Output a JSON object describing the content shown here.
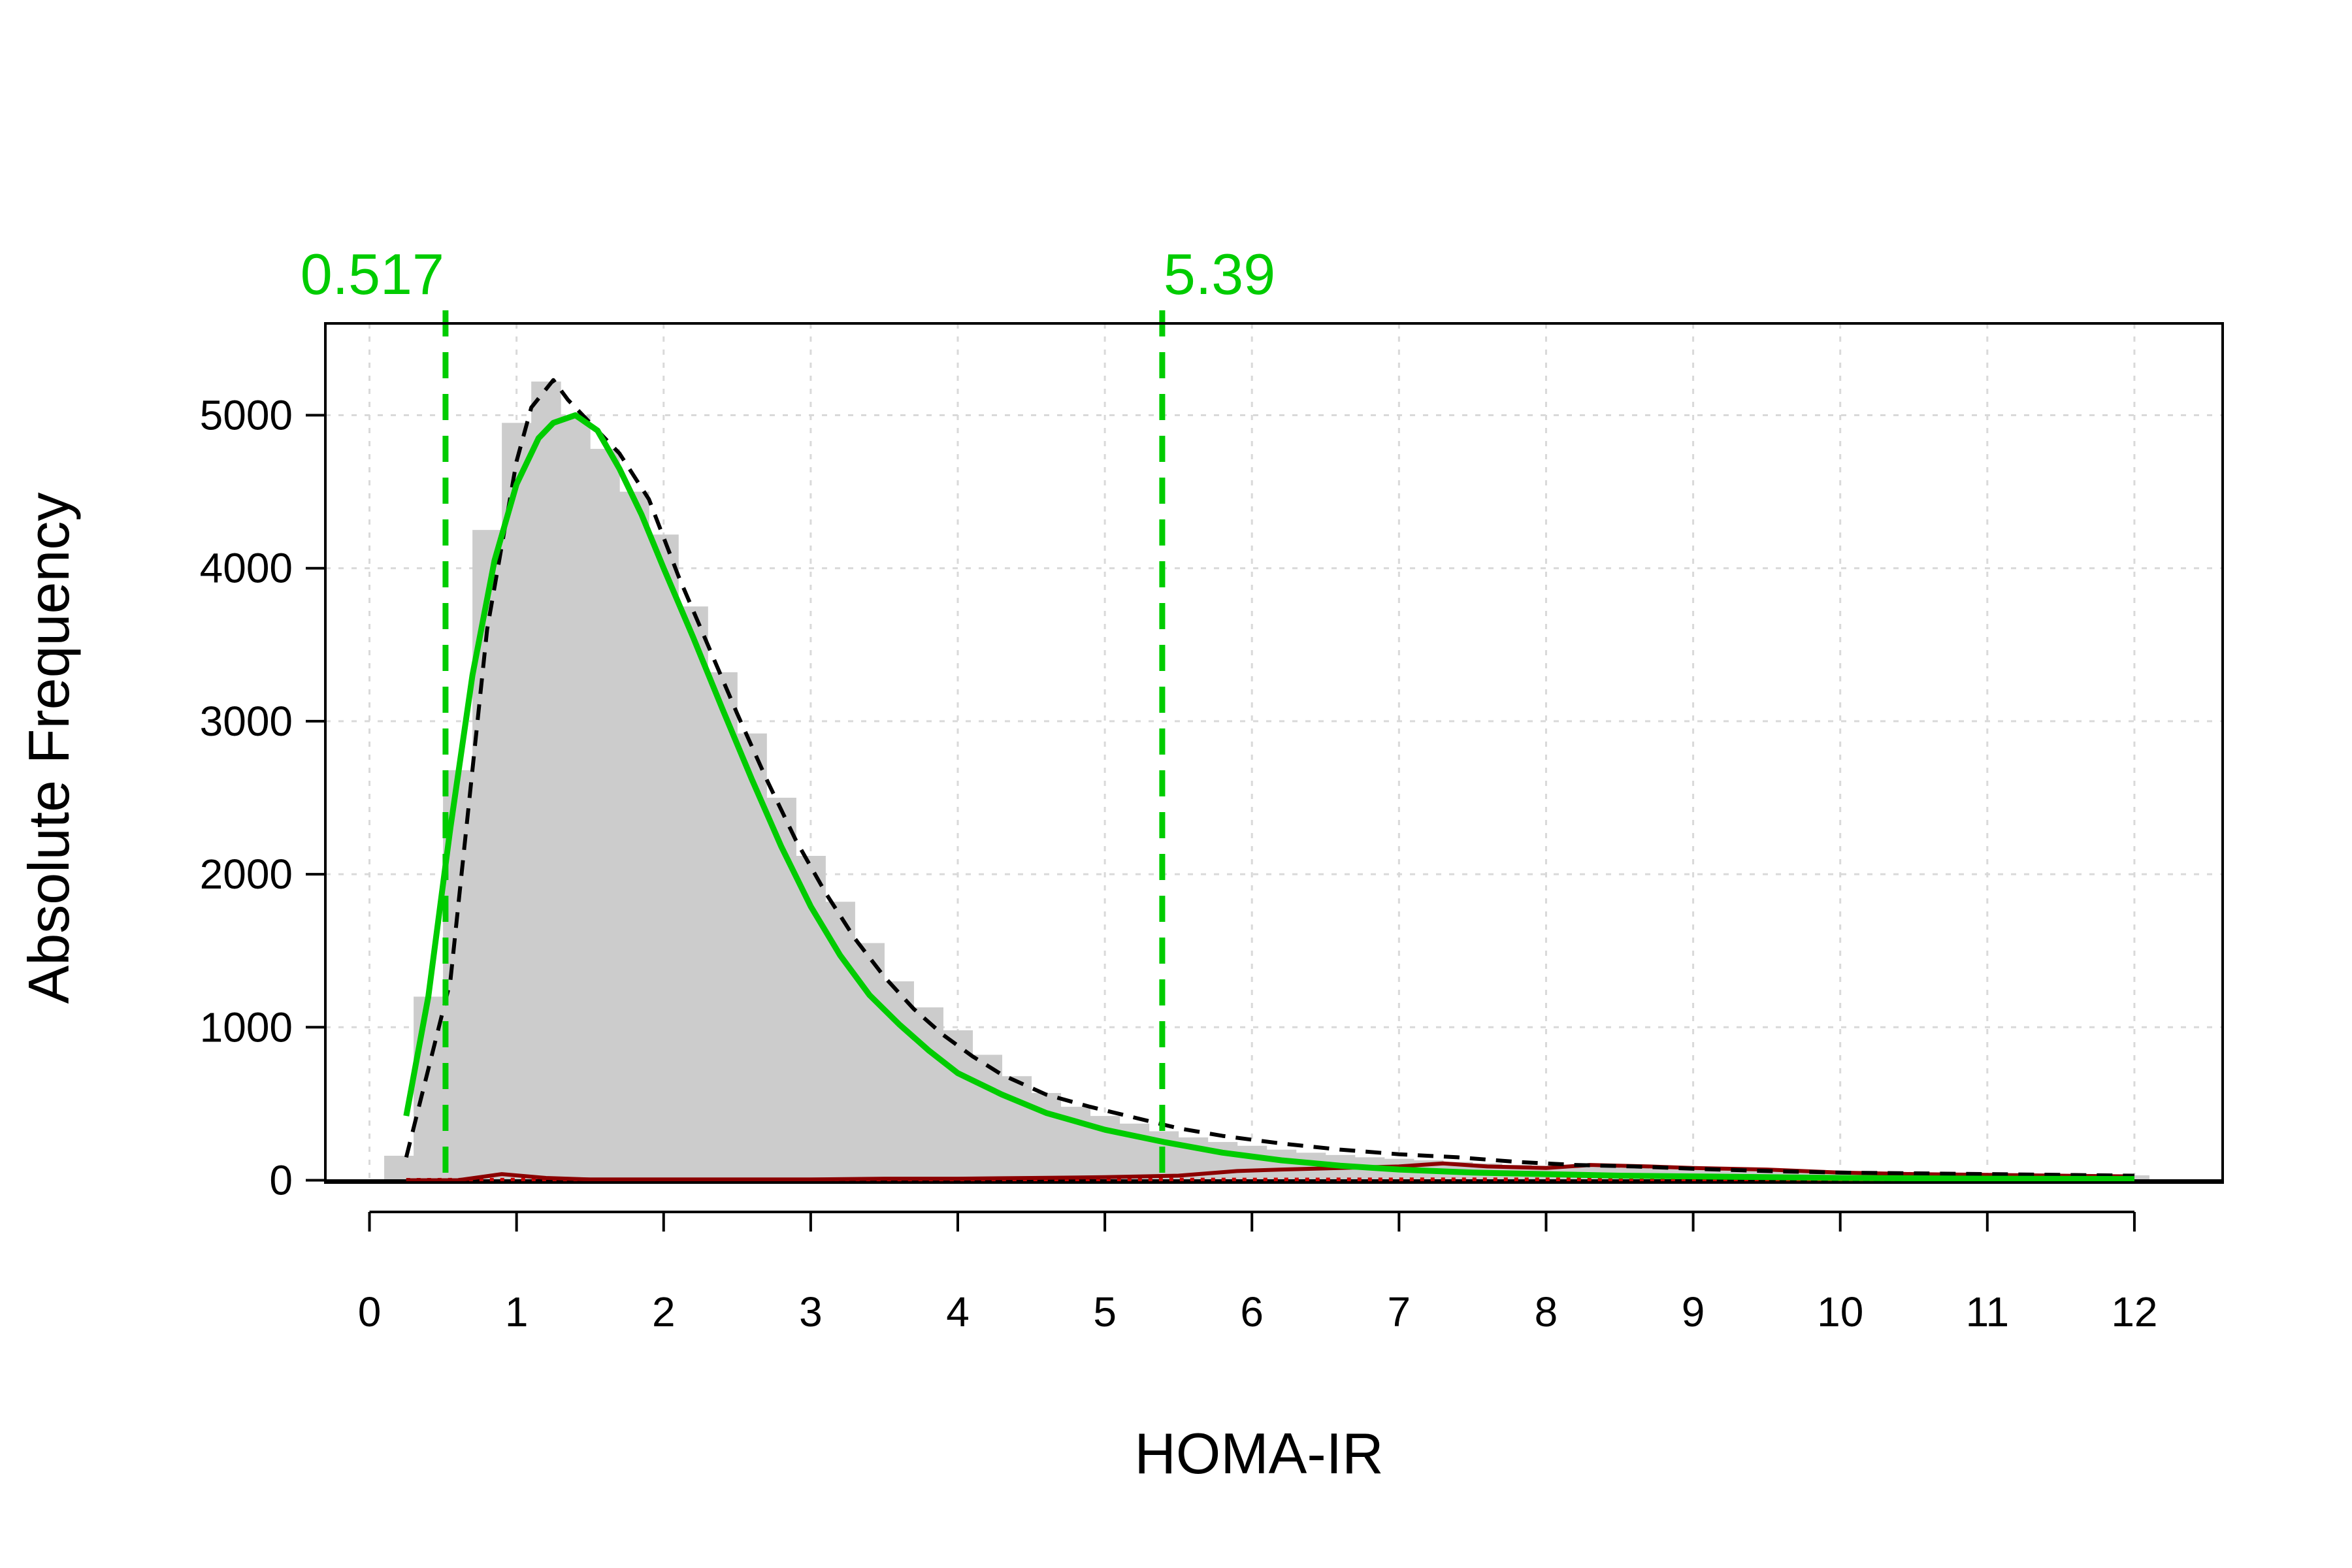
{
  "chart_data": {
    "type": "bar",
    "title": "",
    "xlabel": "HOMA-IR",
    "ylabel": "Absolute Frequency",
    "xlim": [
      -0.3,
      12.6
    ],
    "ylim": [
      -15,
      5600
    ],
    "x_ticks": [
      "0",
      "1",
      "2",
      "3",
      "4",
      "5",
      "6",
      "7",
      "8",
      "9",
      "10",
      "11",
      "12"
    ],
    "y_ticks": [
      "0",
      "1000",
      "2000",
      "3000",
      "4000",
      "5000"
    ],
    "grid": true,
    "histogram": {
      "name": "HOMA-IR",
      "color": "#cccccc",
      "bin_width": 0.2,
      "bin_starts": [
        0.1,
        0.3,
        0.5,
        0.7,
        0.9,
        1.1,
        1.3,
        1.5,
        1.7,
        1.9,
        2.1,
        2.3,
        2.5,
        2.7,
        2.9,
        3.1,
        3.3,
        3.5,
        3.7,
        3.9,
        4.1,
        4.3,
        4.5,
        4.7,
        4.9,
        5.1,
        5.3,
        5.5,
        5.7,
        5.9,
        6.1,
        6.3,
        6.5,
        6.7,
        6.9,
        7.1,
        7.3,
        7.5,
        7.7,
        7.9,
        8.1,
        8.3,
        8.5,
        8.7,
        8.9,
        9.1,
        9.3,
        9.5,
        9.7,
        9.9,
        10.1,
        10.3,
        10.5,
        10.7,
        10.9,
        11.1,
        11.3,
        11.5,
        11.7,
        11.9
      ],
      "values": [
        160,
        1200,
        2680,
        4250,
        4950,
        5220,
        5000,
        4780,
        4500,
        4220,
        3750,
        3320,
        2920,
        2500,
        2120,
        1820,
        1550,
        1300,
        1130,
        980,
        820,
        680,
        570,
        480,
        420,
        370,
        320,
        280,
        250,
        225,
        200,
        180,
        165,
        150,
        140,
        130,
        120,
        110,
        100,
        95,
        90,
        85,
        80,
        75,
        70,
        65,
        60,
        58,
        55,
        52,
        50,
        48,
        46,
        44,
        42,
        40,
        38,
        36,
        34,
        32
      ]
    },
    "series": [
      {
        "color": "#000000",
        "style": "dashed",
        "x": [
          0.25,
          0.55,
          0.8,
          1.0,
          1.1,
          1.25,
          1.35,
          1.5,
          1.7,
          1.9,
          2.1,
          2.3,
          2.5,
          2.7,
          2.9,
          3.1,
          3.3,
          3.5,
          3.7,
          3.9,
          4.1,
          4.3,
          4.6,
          4.9,
          5.2,
          5.5,
          5.8,
          6.2,
          6.6,
          7.0,
          7.4,
          7.8,
          8.2,
          8.6,
          9.0,
          9.5,
          10.0,
          10.5,
          11.0,
          11.5,
          12.0
        ],
        "values": [
          150,
          1300,
          3600,
          4700,
          5050,
          5230,
          5100,
          4950,
          4750,
          4450,
          3950,
          3500,
          3050,
          2620,
          2220,
          1880,
          1580,
          1330,
          1120,
          950,
          810,
          690,
          560,
          480,
          410,
          340,
          290,
          240,
          200,
          170,
          150,
          120,
          100,
          90,
          75,
          60,
          50,
          45,
          40,
          35,
          30
        ]
      },
      {
        "color": "#00cc00",
        "style": "solid",
        "x": [
          0.25,
          0.4,
          0.55,
          0.7,
          0.85,
          1.0,
          1.15,
          1.25,
          1.4,
          1.55,
          1.7,
          1.85,
          2.0,
          2.2,
          2.4,
          2.6,
          2.8,
          3.0,
          3.2,
          3.4,
          3.6,
          3.8,
          4.0,
          4.3,
          4.6,
          5.0,
          5.4,
          5.8,
          6.2,
          6.6,
          7.0,
          7.5,
          8.0,
          8.5,
          9.0,
          9.5,
          10.0,
          11.0,
          12.0
        ],
        "values": [
          420,
          1200,
          2300,
          3300,
          4050,
          4550,
          4850,
          4950,
          5000,
          4900,
          4650,
          4350,
          4000,
          3550,
          3080,
          2620,
          2180,
          1790,
          1470,
          1210,
          1020,
          850,
          700,
          560,
          440,
          330,
          250,
          180,
          130,
          95,
          70,
          50,
          40,
          30,
          25,
          20,
          15,
          10,
          8
        ]
      },
      {
        "color": "#8b0000",
        "style": "solid",
        "x": [
          0.25,
          0.6,
          0.9,
          1.2,
          1.5,
          2.0,
          2.5,
          3.0,
          3.5,
          4.0,
          4.5,
          5.0,
          5.5,
          5.9,
          6.2,
          6.6,
          7.0,
          7.3,
          7.6,
          8.0,
          8.3,
          8.7,
          9.0,
          9.5,
          10.0,
          10.5,
          11.0,
          11.5,
          12.0
        ],
        "values": [
          0,
          0,
          40,
          15,
          5,
          5,
          5,
          5,
          10,
          10,
          15,
          20,
          30,
          60,
          70,
          80,
          90,
          110,
          90,
          80,
          100,
          90,
          80,
          70,
          50,
          40,
          35,
          30,
          25
        ]
      },
      {
        "color": "#cc0000",
        "style": "dotted",
        "x": [
          0.25,
          1.0,
          2.0,
          3.0,
          4.0,
          5.0,
          6.0,
          7.0,
          8.0,
          9.0,
          10.0,
          11.0,
          12.0
        ],
        "values": [
          2,
          3,
          3,
          3,
          3,
          4,
          4,
          5,
          5,
          5,
          5,
          5,
          5
        ]
      }
    ],
    "reference_lines": [
      {
        "x": 0.517,
        "label": "0.517",
        "color": "#00cc00"
      },
      {
        "x": 5.39,
        "label": "5.39",
        "color": "#00cc00"
      }
    ],
    "x_tick_values": [
      0,
      1,
      2,
      3,
      4,
      5,
      6,
      7,
      8,
      9,
      10,
      11,
      12
    ],
    "y_tick_values": [
      0,
      1000,
      2000,
      3000,
      4000,
      5000
    ]
  }
}
